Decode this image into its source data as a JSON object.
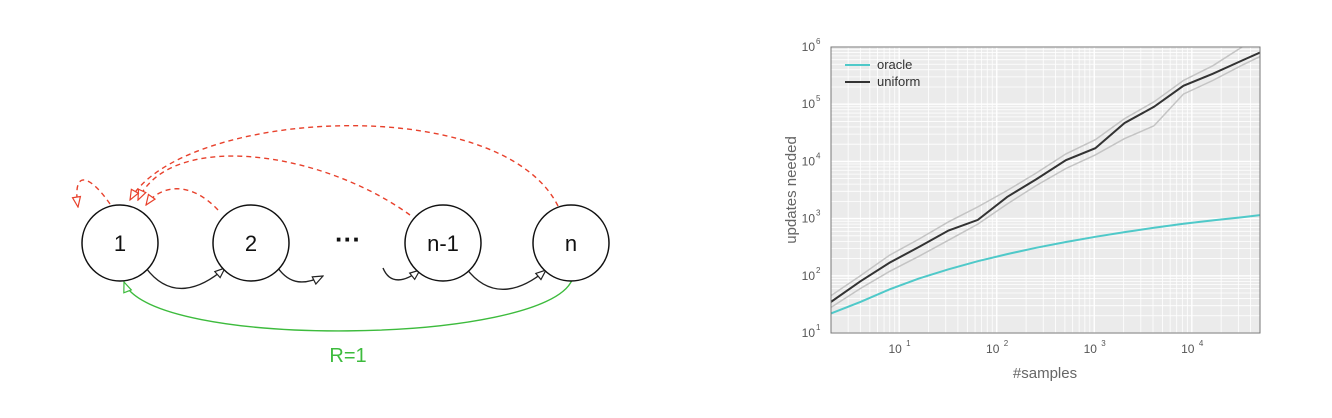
{
  "diagram": {
    "nodes": [
      "1",
      "2",
      "···",
      "n-1",
      "n"
    ],
    "reward_label": "R=1",
    "colors": {
      "forward": "#222222",
      "reset": "#e8412c",
      "reward": "#3dbb3d"
    }
  },
  "chart_data": {
    "type": "line",
    "xlabel": "#samples",
    "ylabel": "updates needed",
    "x_scale": "log",
    "y_scale": "log",
    "xlim": [
      2,
      50000
    ],
    "ylim": [
      10,
      1000000
    ],
    "grid": true,
    "legend_position": "top-left",
    "x_ticks": [
      {
        "base": "10",
        "exp": "1",
        "value": 10
      },
      {
        "base": "10",
        "exp": "2",
        "value": 100
      },
      {
        "base": "10",
        "exp": "3",
        "value": 1000
      },
      {
        "base": "10",
        "exp": "4",
        "value": 10000
      }
    ],
    "y_ticks": [
      {
        "base": "10",
        "exp": "1",
        "value": 10
      },
      {
        "base": "10",
        "exp": "2",
        "value": 100
      },
      {
        "base": "10",
        "exp": "3",
        "value": 1000
      },
      {
        "base": "10",
        "exp": "4",
        "value": 10000
      },
      {
        "base": "10",
        "exp": "5",
        "value": 100000
      },
      {
        "base": "10",
        "exp": "6",
        "value": 1000000
      }
    ],
    "series": [
      {
        "name": "oracle",
        "color": "#4fc9c9",
        "x": [
          2,
          4,
          8,
          16,
          32,
          64,
          128,
          256,
          512,
          1024,
          2048,
          4096,
          8192,
          16384,
          32768,
          50000
        ],
        "y": [
          22,
          35,
          58,
          90,
          130,
          180,
          240,
          310,
          390,
          480,
          580,
          690,
          810,
          930,
          1060,
          1150
        ]
      },
      {
        "name": "uniform",
        "color": "#333333",
        "x": [
          2,
          4,
          8,
          16,
          32,
          64,
          128,
          256,
          512,
          1024,
          2048,
          4096,
          8192,
          16384,
          32768,
          50000
        ],
        "y": [
          35,
          80,
          170,
          320,
          620,
          950,
          2400,
          4900,
          10500,
          17000,
          47000,
          90000,
          210000,
          340000,
          580000,
          800000
        ],
        "band_low": [
          28,
          60,
          120,
          220,
          420,
          800,
          1800,
          3800,
          7500,
          13000,
          25000,
          42000,
          150000,
          260000,
          480000,
          680000
        ],
        "band_high": [
          45,
          100,
          230,
          440,
          880,
          1600,
          3100,
          6300,
          13500,
          24000,
          56000,
          110000,
          260000,
          470000,
          1000000,
          1400000
        ]
      }
    ]
  }
}
